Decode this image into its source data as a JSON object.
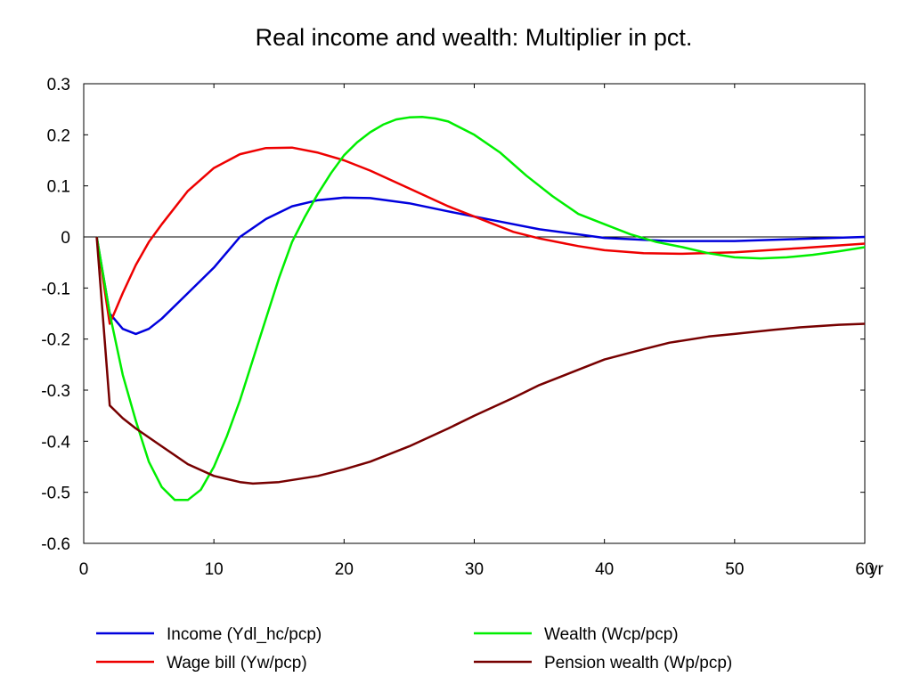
{
  "chart_data": {
    "type": "line",
    "title": "Real income and wealth: Multiplier in pct.",
    "xlabel": "",
    "ylabel": "",
    "x_unit": "yr",
    "xlim": [
      0,
      60
    ],
    "ylim": [
      -0.6,
      0.3
    ],
    "x_ticks": [
      0,
      10,
      20,
      30,
      40,
      50,
      60
    ],
    "x_tick_labels": [
      "0",
      "10",
      "20",
      "30",
      "40",
      "50",
      "60"
    ],
    "y_ticks": [
      0.3,
      0.2,
      0.1,
      0,
      -0.1,
      -0.2,
      -0.3,
      -0.4,
      -0.5,
      -0.6
    ],
    "y_tick_labels": [
      "0.3",
      "0.2",
      "0.1",
      "0",
      "-0.1",
      "-0.2",
      "-0.3",
      "-0.4",
      "-0.5",
      "-0.6"
    ],
    "zero_line": true,
    "grid": false,
    "legend_position": "bottom",
    "series": [
      {
        "name": "Income (Ydl_hc/pcp)",
        "color": "#0000dd",
        "points": [
          [
            1,
            0
          ],
          [
            2,
            -0.15
          ],
          [
            3,
            -0.18
          ],
          [
            4,
            -0.19
          ],
          [
            5,
            -0.18
          ],
          [
            6,
            -0.16
          ],
          [
            8,
            -0.11
          ],
          [
            10,
            -0.06
          ],
          [
            12,
            0
          ],
          [
            14,
            0.035
          ],
          [
            16,
            0.06
          ],
          [
            18,
            0.072
          ],
          [
            20,
            0.077
          ],
          [
            22,
            0.076
          ],
          [
            25,
            0.066
          ],
          [
            28,
            0.05
          ],
          [
            30,
            0.04
          ],
          [
            32,
            0.03
          ],
          [
            35,
            0.015
          ],
          [
            38,
            0.005
          ],
          [
            40,
            -0.002
          ],
          [
            45,
            -0.008
          ],
          [
            50,
            -0.008
          ],
          [
            55,
            -0.004
          ],
          [
            60,
            0
          ]
        ]
      },
      {
        "name": "Wage bill (Yw/pcp)",
        "color": "#ee0000",
        "points": [
          [
            1,
            0
          ],
          [
            2,
            -0.17
          ],
          [
            3,
            -0.11
          ],
          [
            4,
            -0.055
          ],
          [
            5,
            -0.01
          ],
          [
            6,
            0.025
          ],
          [
            8,
            0.09
          ],
          [
            10,
            0.135
          ],
          [
            12,
            0.162
          ],
          [
            14,
            0.174
          ],
          [
            16,
            0.175
          ],
          [
            18,
            0.165
          ],
          [
            20,
            0.15
          ],
          [
            22,
            0.13
          ],
          [
            25,
            0.095
          ],
          [
            28,
            0.06
          ],
          [
            30,
            0.04
          ],
          [
            33,
            0.01
          ],
          [
            35,
            -0.003
          ],
          [
            38,
            -0.018
          ],
          [
            40,
            -0.026
          ],
          [
            43,
            -0.032
          ],
          [
            46,
            -0.033
          ],
          [
            50,
            -0.03
          ],
          [
            55,
            -0.022
          ],
          [
            60,
            -0.013
          ]
        ]
      },
      {
        "name": "Wealth (Wcp/pcp)",
        "color": "#00ee00",
        "points": [
          [
            1,
            0
          ],
          [
            2,
            -0.15
          ],
          [
            3,
            -0.27
          ],
          [
            4,
            -0.36
          ],
          [
            5,
            -0.44
          ],
          [
            6,
            -0.49
          ],
          [
            7,
            -0.515
          ],
          [
            8,
            -0.515
          ],
          [
            9,
            -0.495
          ],
          [
            10,
            -0.45
          ],
          [
            11,
            -0.39
          ],
          [
            12,
            -0.32
          ],
          [
            13,
            -0.24
          ],
          [
            14,
            -0.16
          ],
          [
            15,
            -0.08
          ],
          [
            16,
            -0.01
          ],
          [
            17,
            0.04
          ],
          [
            18,
            0.085
          ],
          [
            19,
            0.125
          ],
          [
            20,
            0.16
          ],
          [
            21,
            0.185
          ],
          [
            22,
            0.205
          ],
          [
            23,
            0.22
          ],
          [
            24,
            0.23
          ],
          [
            25,
            0.234
          ],
          [
            26,
            0.235
          ],
          [
            27,
            0.232
          ],
          [
            28,
            0.226
          ],
          [
            30,
            0.2
          ],
          [
            32,
            0.165
          ],
          [
            34,
            0.12
          ],
          [
            36,
            0.08
          ],
          [
            38,
            0.045
          ],
          [
            40,
            0.025
          ],
          [
            42,
            0.005
          ],
          [
            44,
            -0.01
          ],
          [
            46,
            -0.02
          ],
          [
            48,
            -0.032
          ],
          [
            50,
            -0.04
          ],
          [
            52,
            -0.042
          ],
          [
            54,
            -0.04
          ],
          [
            56,
            -0.035
          ],
          [
            58,
            -0.028
          ],
          [
            60,
            -0.02
          ]
        ]
      },
      {
        "name": "Pension wealth (Wp/pcp)",
        "color": "#770000",
        "points": [
          [
            1,
            0
          ],
          [
            2,
            -0.33
          ],
          [
            3,
            -0.355
          ],
          [
            4,
            -0.375
          ],
          [
            6,
            -0.41
          ],
          [
            8,
            -0.445
          ],
          [
            10,
            -0.468
          ],
          [
            12,
            -0.48
          ],
          [
            13,
            -0.483
          ],
          [
            15,
            -0.48
          ],
          [
            18,
            -0.468
          ],
          [
            20,
            -0.455
          ],
          [
            22,
            -0.44
          ],
          [
            25,
            -0.41
          ],
          [
            28,
            -0.375
          ],
          [
            30,
            -0.35
          ],
          [
            33,
            -0.315
          ],
          [
            35,
            -0.29
          ],
          [
            38,
            -0.26
          ],
          [
            40,
            -0.24
          ],
          [
            43,
            -0.22
          ],
          [
            45,
            -0.207
          ],
          [
            48,
            -0.195
          ],
          [
            50,
            -0.19
          ],
          [
            53,
            -0.182
          ],
          [
            55,
            -0.177
          ],
          [
            58,
            -0.172
          ],
          [
            60,
            -0.17
          ]
        ]
      }
    ]
  }
}
